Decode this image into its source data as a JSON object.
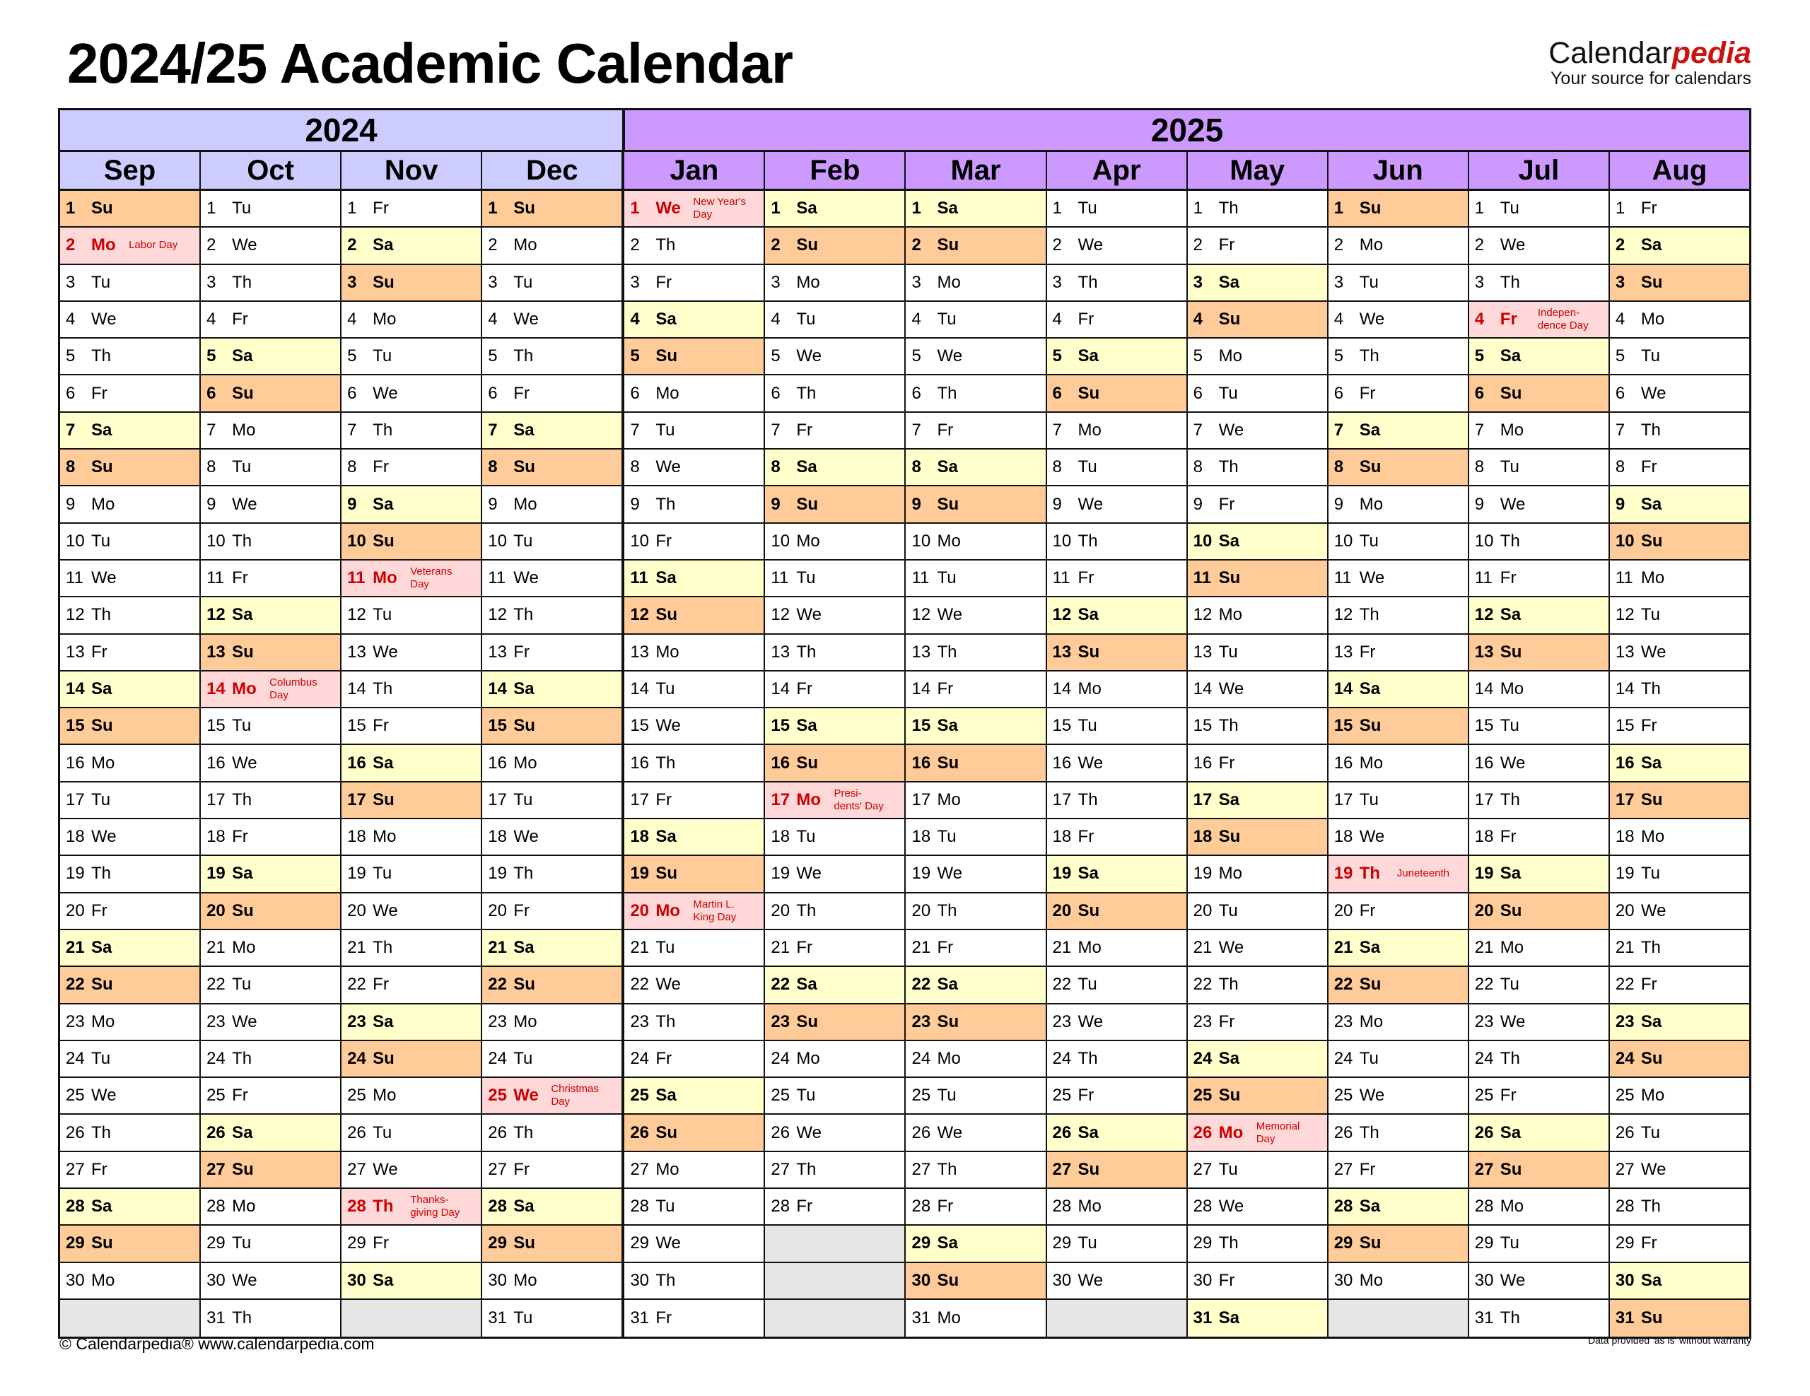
{
  "title": "2024/25 Academic Calendar",
  "logo": {
    "part1": "Calendar",
    "part2": "pedia",
    "tagline": "Your source for calendars"
  },
  "colors": {
    "year2024": "#ccccff",
    "year2025": "#cc99ff",
    "saturday": "#ffffcc",
    "sunday": "#ffcc99",
    "holiday": "#ffd9d9",
    "holiday_text": "#cc0000",
    "empty": "#e6e6e6"
  },
  "years": [
    {
      "label": "2024",
      "months": 4
    },
    {
      "label": "2025",
      "months": 8
    }
  ],
  "months": [
    {
      "name": "Sep",
      "year": "2024",
      "days": [
        "Su",
        "Mo",
        "Tu",
        "We",
        "Th",
        "Fr",
        "Sa",
        "Su",
        "Mo",
        "Tu",
        "We",
        "Th",
        "Fr",
        "Sa",
        "Su",
        "Mo",
        "Tu",
        "We",
        "Th",
        "Fr",
        "Sa",
        "Su",
        "Mo",
        "Tu",
        "We",
        "Th",
        "Fr",
        "Sa",
        "Su",
        "Mo"
      ],
      "holidays": [
        {
          "day": 2,
          "label": "Labor Day"
        }
      ]
    },
    {
      "name": "Oct",
      "year": "2024",
      "days": [
        "Tu",
        "We",
        "Th",
        "Fr",
        "Sa",
        "Su",
        "Mo",
        "Tu",
        "We",
        "Th",
        "Fr",
        "Sa",
        "Su",
        "Mo",
        "Tu",
        "We",
        "Th",
        "Fr",
        "Sa",
        "Su",
        "Mo",
        "Tu",
        "We",
        "Th",
        "Fr",
        "Sa",
        "Su",
        "Mo",
        "Tu",
        "We",
        "Th"
      ],
      "holidays": [
        {
          "day": 14,
          "label": "Columbus\nDay"
        }
      ]
    },
    {
      "name": "Nov",
      "year": "2024",
      "days": [
        "Fr",
        "Sa",
        "Su",
        "Mo",
        "Tu",
        "We",
        "Th",
        "Fr",
        "Sa",
        "Su",
        "Mo",
        "Tu",
        "We",
        "Th",
        "Fr",
        "Sa",
        "Su",
        "Mo",
        "Tu",
        "We",
        "Th",
        "Fr",
        "Sa",
        "Su",
        "Mo",
        "Tu",
        "We",
        "Th",
        "Fr",
        "Sa"
      ],
      "holidays": [
        {
          "day": 11,
          "label": "Veterans\nDay"
        },
        {
          "day": 28,
          "label": "Thanks-\ngiving Day"
        }
      ]
    },
    {
      "name": "Dec",
      "year": "2024",
      "days": [
        "Su",
        "Mo",
        "Tu",
        "We",
        "Th",
        "Fr",
        "Sa",
        "Su",
        "Mo",
        "Tu",
        "We",
        "Th",
        "Fr",
        "Sa",
        "Su",
        "Mo",
        "Tu",
        "We",
        "Th",
        "Fr",
        "Sa",
        "Su",
        "Mo",
        "Tu",
        "We",
        "Th",
        "Fr",
        "Sa",
        "Su",
        "Mo",
        "Tu"
      ],
      "holidays": [
        {
          "day": 25,
          "label": "Christmas\nDay"
        }
      ]
    },
    {
      "name": "Jan",
      "year": "2025",
      "days": [
        "We",
        "Th",
        "Fr",
        "Sa",
        "Su",
        "Mo",
        "Tu",
        "We",
        "Th",
        "Fr",
        "Sa",
        "Su",
        "Mo",
        "Tu",
        "We",
        "Th",
        "Fr",
        "Sa",
        "Su",
        "Mo",
        "Tu",
        "We",
        "Th",
        "Fr",
        "Sa",
        "Su",
        "Mo",
        "Tu",
        "We",
        "Th",
        "Fr"
      ],
      "holidays": [
        {
          "day": 1,
          "label": "New Year's\nDay"
        },
        {
          "day": 20,
          "label": "Martin L.\nKing Day"
        }
      ]
    },
    {
      "name": "Feb",
      "year": "2025",
      "days": [
        "Sa",
        "Su",
        "Mo",
        "Tu",
        "We",
        "Th",
        "Fr",
        "Sa",
        "Su",
        "Mo",
        "Tu",
        "We",
        "Th",
        "Fr",
        "Sa",
        "Su",
        "Mo",
        "Tu",
        "We",
        "Th",
        "Fr",
        "Sa",
        "Su",
        "Mo",
        "Tu",
        "We",
        "Th",
        "Fr"
      ],
      "holidays": [
        {
          "day": 17,
          "label": "Presi-\ndents' Day"
        }
      ]
    },
    {
      "name": "Mar",
      "year": "2025",
      "days": [
        "Sa",
        "Su",
        "Mo",
        "Tu",
        "We",
        "Th",
        "Fr",
        "Sa",
        "Su",
        "Mo",
        "Tu",
        "We",
        "Th",
        "Fr",
        "Sa",
        "Su",
        "Mo",
        "Tu",
        "We",
        "Th",
        "Fr",
        "Sa",
        "Su",
        "Mo",
        "Tu",
        "We",
        "Th",
        "Fr",
        "Sa",
        "Su",
        "Mo"
      ],
      "holidays": []
    },
    {
      "name": "Apr",
      "year": "2025",
      "days": [
        "Tu",
        "We",
        "Th",
        "Fr",
        "Sa",
        "Su",
        "Mo",
        "Tu",
        "We",
        "Th",
        "Fr",
        "Sa",
        "Su",
        "Mo",
        "Tu",
        "We",
        "Th",
        "Fr",
        "Sa",
        "Su",
        "Mo",
        "Tu",
        "We",
        "Th",
        "Fr",
        "Sa",
        "Su",
        "Mo",
        "Tu",
        "We"
      ],
      "holidays": []
    },
    {
      "name": "May",
      "year": "2025",
      "days": [
        "Th",
        "Fr",
        "Sa",
        "Su",
        "Mo",
        "Tu",
        "We",
        "Th",
        "Fr",
        "Sa",
        "Su",
        "Mo",
        "Tu",
        "We",
        "Th",
        "Fr",
        "Sa",
        "Su",
        "Mo",
        "Tu",
        "We",
        "Th",
        "Fr",
        "Sa",
        "Su",
        "Mo",
        "Tu",
        "We",
        "Th",
        "Fr",
        "Sa"
      ],
      "holidays": [
        {
          "day": 26,
          "label": "Memorial\nDay"
        }
      ]
    },
    {
      "name": "Jun",
      "year": "2025",
      "days": [
        "Su",
        "Mo",
        "Tu",
        "We",
        "Th",
        "Fr",
        "Sa",
        "Su",
        "Mo",
        "Tu",
        "We",
        "Th",
        "Fr",
        "Sa",
        "Su",
        "Mo",
        "Tu",
        "We",
        "Th",
        "Fr",
        "Sa",
        "Su",
        "Mo",
        "Tu",
        "We",
        "Th",
        "Fr",
        "Sa",
        "Su",
        "Mo"
      ],
      "holidays": [
        {
          "day": 19,
          "label": "Juneteenth"
        }
      ]
    },
    {
      "name": "Jul",
      "year": "2025",
      "days": [
        "Tu",
        "We",
        "Th",
        "Fr",
        "Sa",
        "Su",
        "Mo",
        "Tu",
        "We",
        "Th",
        "Fr",
        "Sa",
        "Su",
        "Mo",
        "Tu",
        "We",
        "Th",
        "Fr",
        "Sa",
        "Su",
        "Mo",
        "Tu",
        "We",
        "Th",
        "Fr",
        "Sa",
        "Su",
        "Mo",
        "Tu",
        "We",
        "Th"
      ],
      "holidays": [
        {
          "day": 4,
          "label": "Indepen-\ndence Day"
        }
      ]
    },
    {
      "name": "Aug",
      "year": "2025",
      "days": [
        "Fr",
        "Sa",
        "Su",
        "Mo",
        "Tu",
        "We",
        "Th",
        "Fr",
        "Sa",
        "Su",
        "Mo",
        "Tu",
        "We",
        "Th",
        "Fr",
        "Sa",
        "Su",
        "Mo",
        "Tu",
        "We",
        "Th",
        "Fr",
        "Sa",
        "Su",
        "Mo",
        "Tu",
        "We",
        "Th",
        "Fr",
        "Sa",
        "Su"
      ],
      "holidays": []
    }
  ],
  "footer": {
    "copyright": "© Calendarpedia®   www.calendarpedia.com",
    "disclaimer": "Data provided 'as is' without warranty"
  }
}
